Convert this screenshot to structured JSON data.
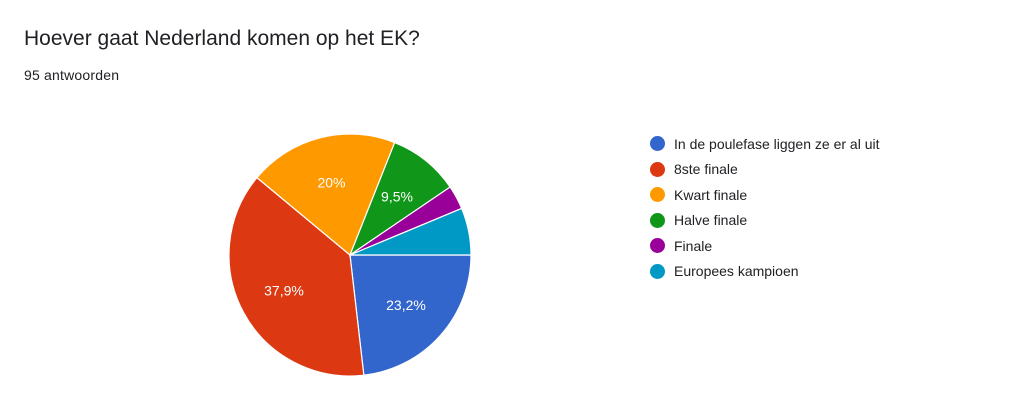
{
  "header": {
    "title": "Hoever gaat Nederland komen op het EK?",
    "response_count": "95 antwoorden"
  },
  "chart_data": {
    "type": "pie",
    "title": "Hoever gaat Nederland komen op het EK?",
    "legend_position": "right",
    "slices": [
      {
        "label": "In de poulefase liggen ze er al uit",
        "value": 23.2,
        "display": "23,2%",
        "color": "#3366cc"
      },
      {
        "label": "8ste finale",
        "value": 37.9,
        "display": "37,9%",
        "color": "#dc3912"
      },
      {
        "label": "Kwart finale",
        "value": 20.0,
        "display": "20%",
        "color": "#ff9900"
      },
      {
        "label": "Halve finale",
        "value": 9.5,
        "display": "9,5%",
        "color": "#109618"
      },
      {
        "label": "Finale",
        "value": 3.2,
        "display": "",
        "color": "#990099"
      },
      {
        "label": "Europees kampioen",
        "value": 6.3,
        "display": "",
        "color": "#0099c6"
      }
    ]
  }
}
